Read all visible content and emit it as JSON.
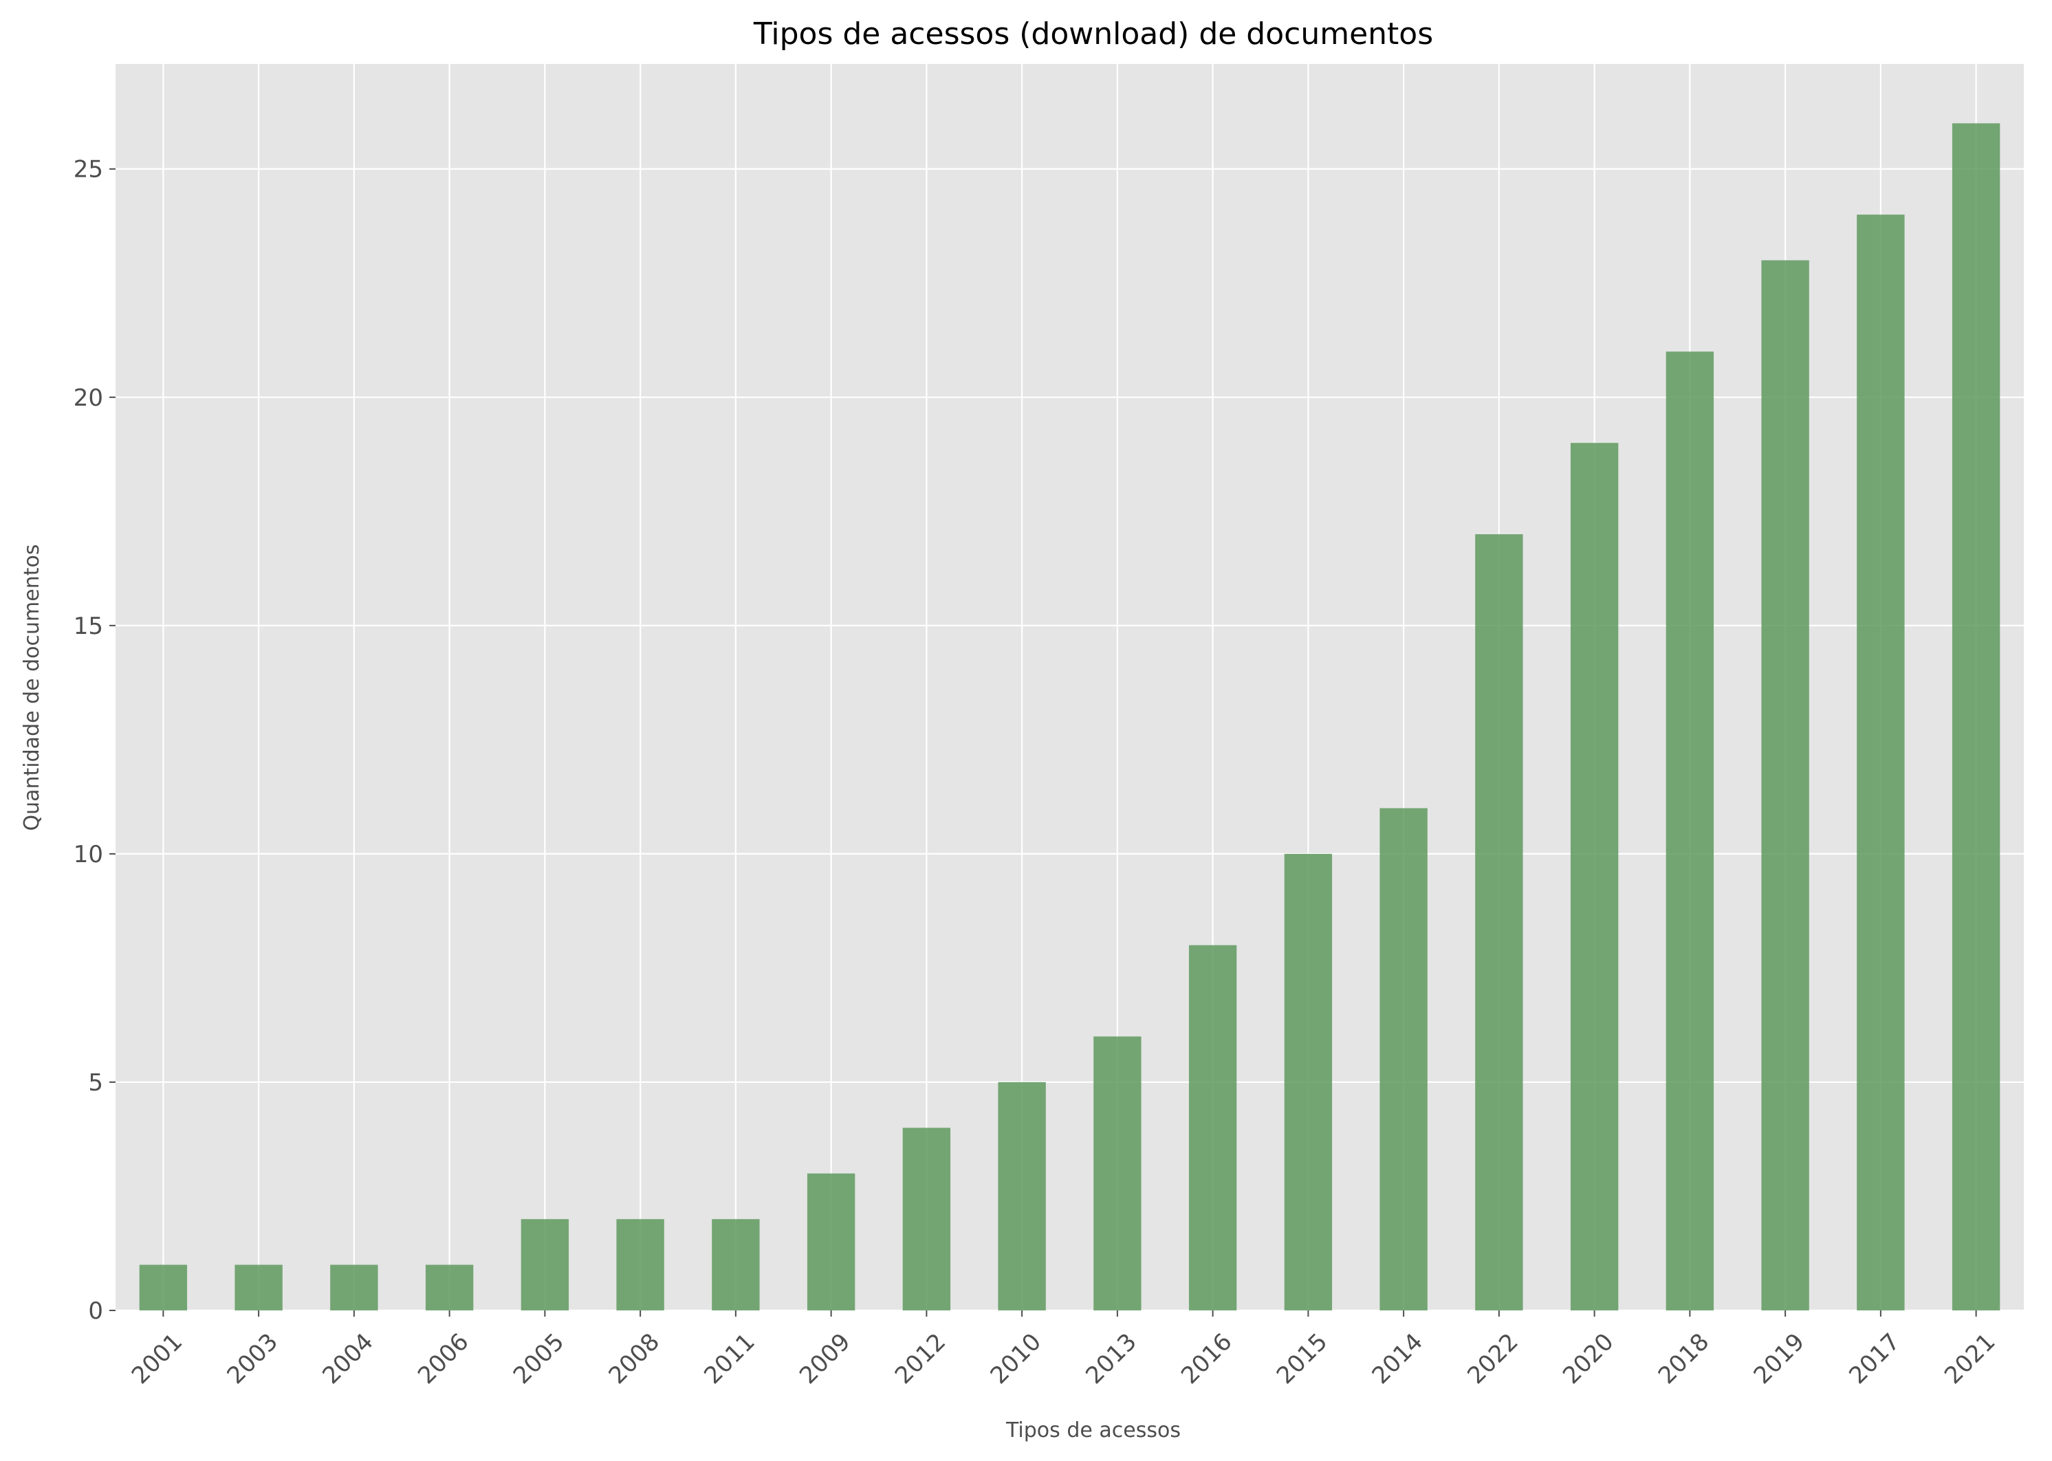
{
  "chart_data": {
    "type": "bar",
    "title": "Tipos de acessos (download) de documentos",
    "xlabel": "Tipos de acessos",
    "ylabel": "Quantidade de documentos",
    "categories": [
      "2001",
      "2003",
      "2004",
      "2006",
      "2005",
      "2008",
      "2011",
      "2009",
      "2012",
      "2010",
      "2013",
      "2016",
      "2015",
      "2014",
      "2022",
      "2020",
      "2018",
      "2019",
      "2017",
      "2021"
    ],
    "values": [
      1,
      1,
      1,
      1,
      2,
      2,
      2,
      3,
      4,
      5,
      6,
      8,
      10,
      11,
      17,
      19,
      21,
      23,
      24,
      26
    ],
    "ylim": [
      0,
      27.3
    ],
    "yticks": [
      0,
      5,
      10,
      15,
      20,
      25
    ],
    "grid": true,
    "legend": "none",
    "bar_color": "#5f9a5f",
    "background_color": "#e5e5e5",
    "grid_color": "#ffffff"
  }
}
